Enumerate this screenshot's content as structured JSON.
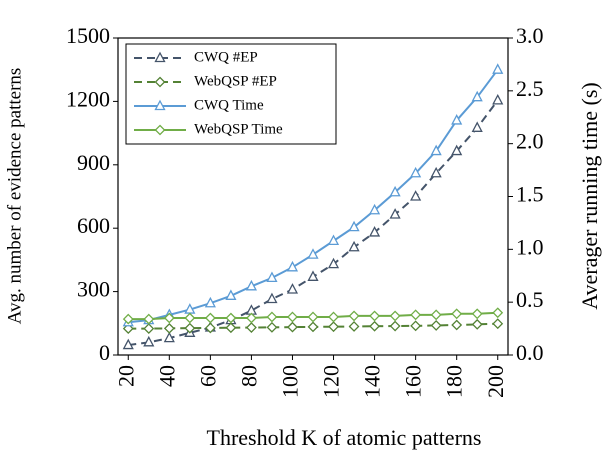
{
  "chart_data": {
    "type": "line",
    "x_label": "Threshold K of atomic patterns",
    "y_label": "Avg. number of evidence patterns",
    "y2_label": "Averager running time (s)",
    "x": [
      20,
      30,
      40,
      50,
      60,
      70,
      80,
      90,
      100,
      110,
      120,
      130,
      140,
      150,
      160,
      170,
      180,
      190,
      200
    ],
    "xlim": [
      15,
      205
    ],
    "xticks": [
      20,
      40,
      60,
      80,
      100,
      120,
      140,
      160,
      180,
      200
    ],
    "ylim": [
      0,
      1500
    ],
    "yticks": [
      0,
      300,
      600,
      900,
      1200,
      1500
    ],
    "y2lim": [
      0,
      3
    ],
    "y2ticks": [
      {
        "value": 0,
        "label": "0.0"
      },
      {
        "value": 0.5,
        "label": "0.5"
      },
      {
        "value": 1,
        "label": "1.0"
      },
      {
        "value": 1.5,
        "label": "1.5"
      },
      {
        "value": 2,
        "label": "2.0"
      },
      {
        "value": 2.5,
        "label": "2.5"
      },
      {
        "value": 3,
        "label": "3.0"
      }
    ],
    "legend": "upper left",
    "series": [
      {
        "name": "CWQ #EP",
        "color": "#44546a",
        "dashed": true,
        "marker": "triangle",
        "axis": "y",
        "values": [
          47,
          60,
          80,
          105,
          130,
          165,
          210,
          265,
          310,
          370,
          430,
          510,
          580,
          665,
          750,
          860,
          965,
          1075,
          1205
        ]
      },
      {
        "name": "WebQSP #EP",
        "color": "#548235",
        "dashed": true,
        "marker": "diamond",
        "axis": "y",
        "values": [
          125,
          125,
          126,
          127,
          128,
          129,
          130,
          131,
          132,
          133,
          134,
          135,
          136,
          137,
          138,
          140,
          142,
          145,
          148
        ]
      },
      {
        "name": "CWQ Time",
        "color": "#5b9bd5",
        "dashed": false,
        "marker": "triangle",
        "axis": "y2",
        "values": [
          0.31,
          0.33,
          0.38,
          0.43,
          0.49,
          0.56,
          0.65,
          0.73,
          0.83,
          0.95,
          1.08,
          1.21,
          1.37,
          1.54,
          1.72,
          1.93,
          2.22,
          2.44,
          2.7
        ]
      },
      {
        "name": "WebQSP Time",
        "color": "#70ad47",
        "dashed": false,
        "marker": "diamond",
        "axis": "y2",
        "values": [
          0.34,
          0.34,
          0.35,
          0.35,
          0.35,
          0.35,
          0.35,
          0.36,
          0.36,
          0.36,
          0.36,
          0.37,
          0.37,
          0.37,
          0.38,
          0.38,
          0.39,
          0.39,
          0.4
        ]
      }
    ]
  }
}
